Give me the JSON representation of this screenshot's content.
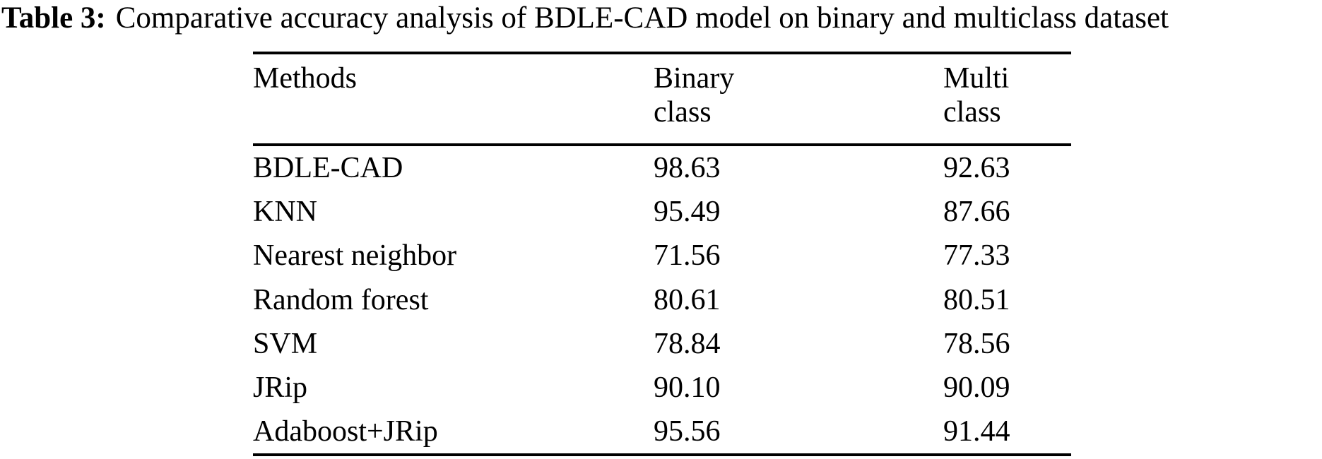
{
  "caption": {
    "label": "Table 3:",
    "text": "Comparative accuracy analysis of BDLE-CAD model on binary and multiclass dataset"
  },
  "table": {
    "header": {
      "methods": "Methods",
      "binary_line1": "Binary",
      "binary_line2": "class",
      "multi_line1": "Multi",
      "multi_line2": "class"
    },
    "rows": [
      {
        "method": "BDLE-CAD",
        "binary": "98.63",
        "multi": "92.63"
      },
      {
        "method": "KNN",
        "binary": "95.49",
        "multi": "87.66"
      },
      {
        "method": "Nearest neighbor",
        "binary": "71.56",
        "multi": "77.33"
      },
      {
        "method": "Random forest",
        "binary": "80.61",
        "multi": "80.51"
      },
      {
        "method": "SVM",
        "binary": "78.84",
        "multi": "78.56"
      },
      {
        "method": "JRip",
        "binary": "90.10",
        "multi": "90.09"
      },
      {
        "method": "Adaboost+JRip",
        "binary": "95.56",
        "multi": "91.44"
      }
    ]
  },
  "chart_data": {
    "type": "table",
    "title": "Table 3: Comparative accuracy analysis of BDLE-CAD model on binary and multiclass dataset",
    "columns": [
      "Methods",
      "Binary class",
      "Multi class"
    ],
    "categories": [
      "BDLE-CAD",
      "KNN",
      "Nearest neighbor",
      "Random forest",
      "SVM",
      "JRip",
      "Adaboost+JRip"
    ],
    "series": [
      {
        "name": "Binary class",
        "values": [
          98.63,
          95.49,
          71.56,
          80.61,
          78.84,
          90.1,
          95.56
        ]
      },
      {
        "name": "Multi class",
        "values": [
          92.63,
          87.66,
          77.33,
          80.51,
          78.56,
          90.09,
          91.44
        ]
      }
    ]
  }
}
